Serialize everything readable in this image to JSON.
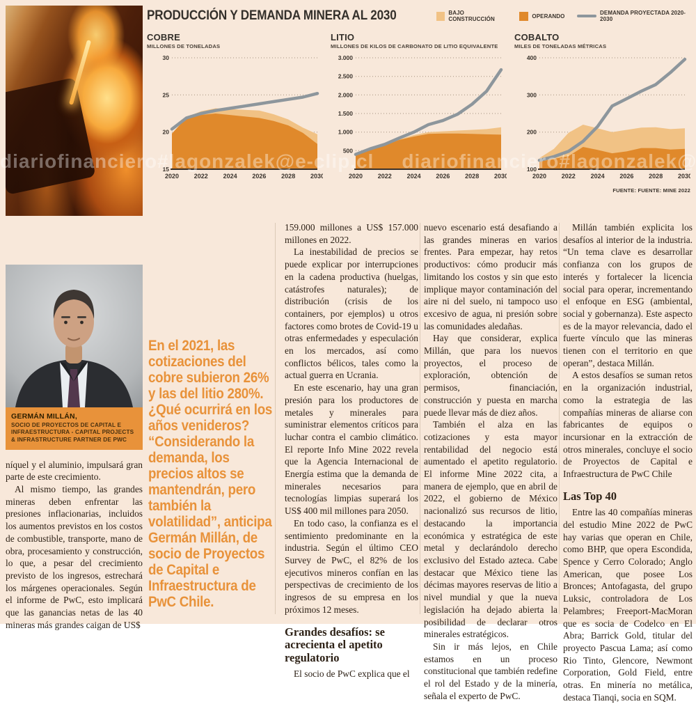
{
  "page": {
    "background": "#f8e8da",
    "accent": "#e8923a",
    "ink": "#2d2116"
  },
  "watermark": {
    "text": "diariofinanciero#lagonzalek@e-clip.cl"
  },
  "infographic": {
    "title": "PRODUCCIÓN Y DEMANDA MINERA AL 2030",
    "source": "FUENTE: FUENTE: MINE 2022",
    "legend": [
      {
        "label": "BAJO CONSTRUCCIÓN",
        "color": "#f1c285",
        "type": "swatch"
      },
      {
        "label": "OPERANDO",
        "color": "#e0892b",
        "type": "swatch"
      },
      {
        "label": "DEMANDA PROYECTADA 2020-2030",
        "color": "#8d969c",
        "type": "line"
      }
    ]
  },
  "colors": {
    "construccion": "#f1c285",
    "operando": "#e0892b",
    "demanda": "#8d969c",
    "axis": "#3a332c",
    "grid": "#8d7b66",
    "baseline": "#3a3129"
  },
  "chart_data": [
    {
      "type": "area",
      "title": "COBRE",
      "subtitle": "MILLONES DE TONELADAS",
      "x": [
        2020,
        2021,
        2022,
        2023,
        2024,
        2025,
        2026,
        2027,
        2028,
        2029,
        2030
      ],
      "xticks": [
        2020,
        2022,
        2024,
        2026,
        2028,
        2030
      ],
      "ylim": [
        15,
        30
      ],
      "yticks": [
        30,
        25,
        20,
        15
      ],
      "ytick_labels": [
        "30",
        "25",
        "20",
        "15"
      ],
      "series": [
        {
          "name": "OPERANDO",
          "role": "area_operando",
          "values": [
            19.8,
            21.9,
            22.3,
            22.5,
            22.3,
            22.1,
            21.9,
            21.5,
            20.9,
            19.9,
            18.4
          ]
        },
        {
          "name": "OPERANDO + BAJO CONSTRUCCIÓN",
          "role": "area_total",
          "values": [
            19.8,
            22.0,
            22.8,
            23.2,
            23.1,
            23.0,
            22.9,
            22.4,
            21.7,
            20.6,
            19.7
          ]
        },
        {
          "name": "DEMANDA PROYECTADA 2020-2030",
          "role": "line_demanda",
          "values": [
            20.4,
            21.9,
            22.5,
            22.9,
            23.2,
            23.5,
            23.8,
            24.1,
            24.4,
            24.7,
            25.2
          ]
        }
      ]
    },
    {
      "type": "area",
      "title": "LITIO",
      "subtitle": "MILLONES DE KILOS DE CARBONATO DE LITIO EQUIVALENTE",
      "x": [
        2020,
        2021,
        2022,
        2023,
        2024,
        2025,
        2026,
        2027,
        2028,
        2029,
        2030
      ],
      "xticks": [
        2020,
        2022,
        2024,
        2026,
        2028,
        2030
      ],
      "ylim": [
        0,
        3000
      ],
      "yticks": [
        3000,
        2500,
        2000,
        1500,
        1000,
        500
      ],
      "ytick_labels": [
        "3.000",
        "2.500",
        "2.000",
        "1.500",
        "1.000",
        "500"
      ],
      "series": [
        {
          "name": "OPERANDO",
          "role": "area_operando",
          "values": [
            420,
            520,
            640,
            790,
            880,
            950,
            960,
            960,
            950,
            940,
            930
          ]
        },
        {
          "name": "OPERANDO + BAJO CONSTRUCCIÓN",
          "role": "area_total",
          "values": [
            420,
            525,
            650,
            800,
            920,
            1000,
            1020,
            1040,
            1060,
            1080,
            1130
          ]
        },
        {
          "name": "DEMANDA PROYECTADA 2020-2030",
          "role": "line_demanda",
          "values": [
            400,
            550,
            670,
            840,
            1000,
            1200,
            1310,
            1480,
            1750,
            2100,
            2680
          ]
        }
      ]
    },
    {
      "type": "area",
      "title": "COBALTO",
      "subtitle": "MILES DE TONELADAS MÉTRICAS",
      "x": [
        2020,
        2021,
        2022,
        2023,
        2024,
        2025,
        2026,
        2027,
        2028,
        2029,
        2030
      ],
      "xticks": [
        2020,
        2022,
        2024,
        2026,
        2028,
        2030
      ],
      "ylim": [
        100,
        400
      ],
      "yticks": [
        400,
        300,
        200,
        100
      ],
      "ytick_labels": [
        "400",
        "300",
        "200",
        "100"
      ],
      "series": [
        {
          "name": "OPERANDO",
          "role": "area_operando",
          "values": [
            120,
            128,
            135,
            160,
            152,
            143,
            148,
            157,
            157,
            153,
            155
          ]
        },
        {
          "name": "OPERANDO + BAJO CONSTRUCCIÓN",
          "role": "area_total",
          "values": [
            130,
            155,
            198,
            220,
            210,
            200,
            206,
            212,
            213,
            208,
            210
          ]
        },
        {
          "name": "DEMANDA PROYECTADA 2020-2030",
          "role": "line_demanda",
          "values": [
            124,
            134,
            148,
            175,
            215,
            270,
            290,
            310,
            328,
            360,
            396
          ]
        }
      ]
    }
  ],
  "photo_caption": {
    "name": "GERMÁN MILLÁN,",
    "role": "SOCIO DE PROYECTOS DE CAPITAL E INFRAESTRUCTURA - CAPITAL PROJECTS & INFRASTRUCTURE PARTNER DE PWC"
  },
  "pull_quote": {
    "text": "En el 2021, las cotizaciones del cobre subieron 26% y las del litio 280%. ¿Qué ocurrirá en los años venideros? “Considerando la demanda, los precios altos se mantendrán, pero también la volatilidad”, anticipa Germán Millán, de socio de Proyectos de Capital e Infraestructura de PwC Chile."
  },
  "columns": {
    "col1": [
      {
        "t": "p",
        "indent": false,
        "text": "níquel y el aluminio, impulsará gran parte de este crecimiento."
      },
      {
        "t": "p",
        "indent": true,
        "text": "Al mismo tiempo, las grandes mineras deben enfrentar las presiones inflacionarias, incluidos los aumentos previstos en los costos de combustible, transporte, mano de obra, procesamiento y construcción, lo que, a pesar del crecimiento previsto de los ingresos, estrechará los márgenes operacionales. Según el informe de PwC, esto implicará que las ganancias netas de las 40 mineras más grandes caigan de US$"
      }
    ],
    "col3": [
      {
        "t": "p",
        "indent": false,
        "text": "159.000 millones a US$ 157.000 millones en 2022."
      },
      {
        "t": "p",
        "indent": true,
        "text": "La inestabilidad de precios se puede explicar por interrupciones en la cadena productiva (huelgas, catástrofes naturales); de distribución (crisis de los containers, por ejemplos) u otros factores como brotes de Covid-19 u otras enfermedades y especulación en los mercados, así como conflictos bélicos, tales como la actual guerra en Ucrania."
      },
      {
        "t": "p",
        "indent": true,
        "text": "En este escenario, hay una gran presión para los productores de metales y minerales para suministrar elementos críticos para luchar contra el cambio climático. El reporte Info Mine 2022 revela que la Agencia Internacional de Energía estima que la demanda de minerales necesarios para tecnologías limpias superará los US$ 400 mil millones para 2050."
      },
      {
        "t": "p",
        "indent": true,
        "text": "En todo caso, la confianza es el sentimiento predominante en la industria. Según el último CEO Survey de PwC, el 82% de los ejecutivos mineros confían en las perspectivas de crecimiento de los ingresos de su empresa en los próximos 12 meses."
      },
      {
        "t": "h",
        "text": "Grandes desafíos: se acrecienta el apetito regulatorio"
      },
      {
        "t": "p",
        "indent": true,
        "text": "El socio de PwC explica que el"
      }
    ],
    "col4": [
      {
        "t": "p",
        "indent": false,
        "text": "nuevo escenario está desafiando a las grandes mineras en varios frentes. Para empezar, hay retos productivos: cómo producir más limitando los costos y sin que esto implique mayor contaminación del aire ni del suelo, ni tampoco uso excesivo de agua, ni presión sobre las comunidades aledañas."
      },
      {
        "t": "p",
        "indent": true,
        "text": "Hay que considerar, explica Millán, que para los nuevos proyectos, el proceso de exploración, obtención de permisos, financiación, construcción y puesta en marcha puede llevar más de diez años."
      },
      {
        "t": "p",
        "indent": true,
        "text": "También el alza en las cotizaciones y esta mayor rentabilidad del negocio está aumentado el apetito regulatorio. El informe Mine 2022 cita, a manera de ejemplo, que en abril de 2022, el gobierno de México nacionalizó sus recursos de litio, destacando la importancia económica y estratégica de este metal y declarándolo derecho exclusivo del Estado azteca. Cabe destacar que México tiene las décimas mayores reservas de litio a nivel mundial y que la nueva legislación ha dejado abierta la posibilidad de declarar otros minerales estratégicos."
      },
      {
        "t": "p",
        "indent": true,
        "text": "Sin ir más lejos, en Chile estamos en un proceso constitucional que también redefine el rol del Estado y de la minería, señala el experto de PwC."
      }
    ],
    "col5": [
      {
        "t": "p",
        "indent": true,
        "text": "Millán también explicita los desafíos al interior de la industria. “Un tema clave es desarrollar confianza con los grupos de interés y fortalecer la licencia social para operar, incrementando el enfoque en ESG (ambiental, social y gobernanza). Este aspecto es de la mayor relevancia, dado el fuerte vínculo que las mineras tienen con el territorio en que operan”, destaca Millán."
      },
      {
        "t": "p",
        "indent": true,
        "text": "A estos desafíos se suman retos en la organización industrial, como la estrategia de las compañías mineras de aliarse con fabricantes de equipos o incursionar en la extracción de otros minerales, concluye el socio de Proyectos de Capital e Infraestructura de PwC Chile"
      },
      {
        "t": "h",
        "text": "Las Top 40"
      },
      {
        "t": "p",
        "indent": true,
        "text": "Entre las 40 compañías mineras del estudio Mine 2022 de PwC hay varias que operan en Chile, como BHP, que opera Escondida, Spence y Cerro Colorado; Anglo American, que posee Los Bronces; Antofagasta, del grupo Luksic, controladora de Los Pelambres; Freeport-MacMoran que es socia de Codelco en El Abra; Barrick Gold, titular del proyecto Pascua Lama; así como Rio Tinto, Glencore, Newmont Corporation, Gold Field, entre otras. En minería no metálica, destaca Tianqi, socia en SQM."
      }
    ]
  }
}
